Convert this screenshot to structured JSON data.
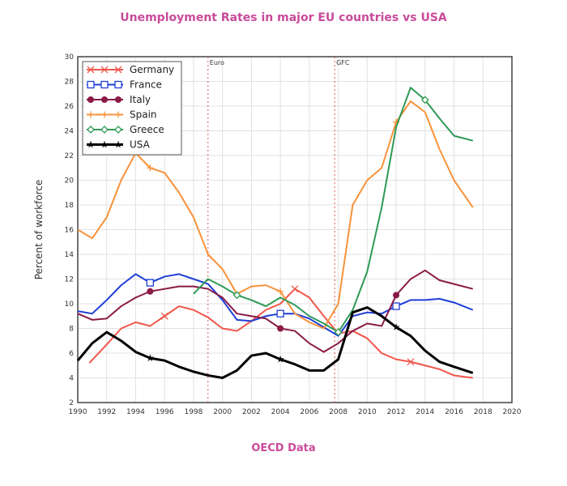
{
  "title": "Unemployment Rates in major EU countries vs USA",
  "footer": "OECD Data",
  "chart_data": {
    "type": "line",
    "title": "Unemployment Rates in major EU countries vs USA",
    "xlabel": "",
    "ylabel": "Percent of workforce",
    "xlim": [
      1990,
      2020
    ],
    "ylim": [
      2,
      30
    ],
    "xticks": [
      1990,
      1992,
      1994,
      1996,
      1998,
      2000,
      2002,
      2004,
      2006,
      2008,
      2010,
      2012,
      2014,
      2016,
      2018,
      2020
    ],
    "yticks": [
      2,
      4,
      6,
      8,
      10,
      12,
      14,
      16,
      18,
      20,
      22,
      24,
      26,
      28,
      30
    ],
    "grid": true,
    "legend": "top-left",
    "annotations": [
      {
        "label": "Euro",
        "x": 1999
      },
      {
        "label": "GFC",
        "x": 2007.75
      }
    ],
    "series": [
      {
        "name": "Germany",
        "color": "#f0564a",
        "marker": "x",
        "x": [
          1990.8,
          1992,
          1993,
          1994,
          1995,
          1996,
          1997,
          1998,
          1999,
          2000,
          2001,
          2002,
          2003,
          2004,
          2005,
          2006,
          2007,
          2008,
          2009,
          2010,
          2011,
          2012,
          2013,
          2014,
          2015,
          2016,
          2017.3
        ],
        "y": [
          5.2,
          6.7,
          8,
          8.5,
          8.2,
          9,
          9.8,
          9.5,
          8.9,
          8,
          7.8,
          8.6,
          9.5,
          10,
          11.2,
          10.5,
          9,
          7.6,
          7.8,
          7.2,
          6,
          5.5,
          5.3,
          5,
          4.7,
          4.2,
          4
        ]
      },
      {
        "name": "France",
        "color": "#1f3fd6",
        "marker": "square",
        "x": [
          1990,
          1991,
          1992,
          1993,
          1994,
          1995,
          1996,
          1997,
          1998,
          1999,
          2000,
          2001,
          2002,
          2003,
          2004,
          2005,
          2006,
          2007,
          2008,
          2009,
          2010,
          2011,
          2012,
          2013,
          2014,
          2015,
          2016,
          2017.3
        ],
        "y": [
          9.4,
          9.2,
          10.3,
          11.5,
          12.4,
          11.7,
          12.2,
          12.4,
          12,
          11.6,
          10.3,
          8.7,
          8.6,
          9,
          9.2,
          9.2,
          8.8,
          8.1,
          7.4,
          9,
          9.3,
          9.2,
          9.8,
          10.3,
          10.3,
          10.4,
          10.1,
          9.5
        ]
      },
      {
        "name": "Italy",
        "color": "#8a1a45",
        "marker": "circle",
        "x": [
          1990,
          1991,
          1992,
          1993,
          1994,
          1995,
          1996,
          1997,
          1998,
          1999,
          2000,
          2001,
          2002,
          2003,
          2004,
          2005,
          2006,
          2007,
          2008,
          2009,
          2010,
          2011,
          2012,
          2013,
          2014,
          2015,
          2016,
          2017.3
        ],
        "y": [
          9.2,
          8.7,
          8.8,
          9.8,
          10.5,
          11,
          11.2,
          11.4,
          11.4,
          11.2,
          10.5,
          9.2,
          9,
          8.8,
          8,
          7.8,
          6.8,
          6.1,
          6.8,
          7.8,
          8.4,
          8.2,
          10.7,
          12,
          12.7,
          11.9,
          11.6,
          11.2
        ]
      },
      {
        "name": "Spain",
        "color": "#f7923a",
        "marker": "plus",
        "x": [
          1990,
          1991,
          1992,
          1993,
          1994,
          1995,
          1996,
          1997,
          1998,
          1999,
          2000,
          2001,
          2002,
          2003,
          2004,
          2005,
          2006,
          2007,
          2008,
          2009,
          2010,
          2011,
          2012,
          2013,
          2014,
          2015,
          2016,
          2017.3
        ],
        "y": [
          16,
          15.3,
          17,
          20,
          22.2,
          21,
          20.6,
          19,
          17,
          14,
          12.8,
          10.8,
          11.4,
          11.5,
          11,
          9.2,
          8.5,
          8,
          10,
          18,
          20,
          21,
          24.7,
          26.4,
          25.5,
          22.5,
          20,
          17.8
        ]
      },
      {
        "name": "Greece",
        "color": "#2e9a55",
        "marker": "diamond",
        "x": [
          1998,
          1999,
          2000,
          2001,
          2002,
          2003,
          2004,
          2005,
          2006,
          2007,
          2008,
          2009,
          2010,
          2011,
          2012,
          2013,
          2014,
          2015,
          2016,
          2017.3
        ],
        "y": [
          10.8,
          12,
          11.4,
          10.7,
          10.3,
          9.8,
          10.5,
          9.9,
          9,
          8.4,
          7.7,
          9.5,
          12.6,
          17.8,
          24.3,
          27.5,
          26.5,
          25,
          23.6,
          23.2
        ]
      },
      {
        "name": "USA",
        "color": "#000000",
        "marker": "star",
        "x": [
          1990,
          1991,
          1992,
          1993,
          1994,
          1995,
          1996,
          1997,
          1998,
          1999,
          2000,
          2001,
          2002,
          2003,
          2004,
          2005,
          2006,
          2007,
          2008,
          2009,
          2010,
          2011,
          2012,
          2013,
          2014,
          2015,
          2016,
          2017.3
        ],
        "y": [
          5.4,
          6.8,
          7.7,
          7,
          6.1,
          5.6,
          5.4,
          4.9,
          4.5,
          4.2,
          4,
          4.6,
          5.8,
          6,
          5.5,
          5.1,
          4.6,
          4.6,
          5.5,
          9.3,
          9.7,
          9,
          8.1,
          7.4,
          6.2,
          5.3,
          4.9,
          4.4
        ]
      }
    ]
  }
}
